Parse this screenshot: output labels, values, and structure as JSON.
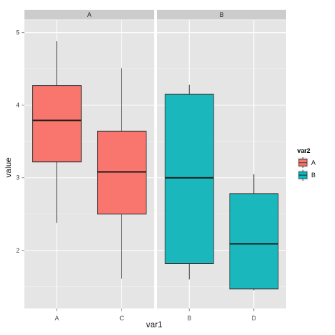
{
  "chart_data": {
    "type": "boxplot",
    "xlabel": "var1",
    "ylabel": "value",
    "ylim": [
      1.2,
      5.17
    ],
    "y_ticks": [
      2,
      3,
      4,
      5
    ],
    "panels": [
      {
        "strip": "A",
        "categories": [
          "A",
          "C"
        ]
      },
      {
        "strip": "B",
        "categories": [
          "B",
          "D"
        ]
      }
    ],
    "boxes": [
      {
        "panel": "A",
        "category": "A",
        "group": "A",
        "min": 2.38,
        "q1": 3.22,
        "median": 3.79,
        "q3": 4.27,
        "max": 4.88
      },
      {
        "panel": "A",
        "category": "C",
        "group": "A",
        "min": 1.61,
        "q1": 2.5,
        "median": 3.08,
        "q3": 3.64,
        "max": 4.51
      },
      {
        "panel": "B",
        "category": "B",
        "group": "B",
        "min": 1.6,
        "q1": 1.82,
        "median": 3.0,
        "q3": 4.15,
        "max": 4.28
      },
      {
        "panel": "B",
        "category": "D",
        "group": "B",
        "min": 1.45,
        "q1": 1.47,
        "median": 2.09,
        "q3": 2.78,
        "max": 3.05
      }
    ],
    "legend": {
      "title": "var2",
      "position": "right",
      "entries": [
        {
          "label": "A",
          "color": "#f8766d"
        },
        {
          "label": "B",
          "color": "#00bfc4"
        }
      ]
    },
    "grid": true,
    "colors": {
      "panel_bg": "#e5e5e5",
      "grid_major": "#ffffff",
      "grid_minor": "#f2f2f2",
      "strip_bg": "#cccccc",
      "fill_A": "#f8766d",
      "fill_B": "#1ab8bd"
    }
  }
}
